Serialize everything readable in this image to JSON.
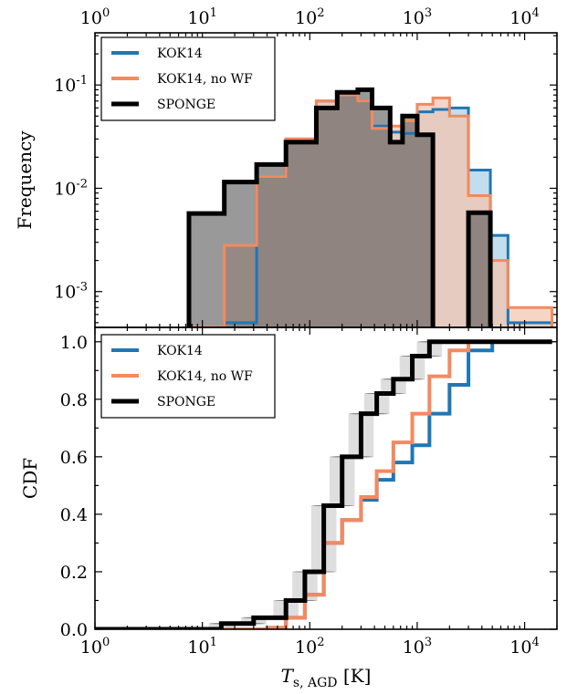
{
  "colors": {
    "kok14": "#1f77b4",
    "kok14_nowf": "#f4895f",
    "sponge": "#000000"
  },
  "chart_data": [
    {
      "type": "area",
      "panel": "top",
      "xlabel": "",
      "ylabel": "Frequency",
      "xscale": "log",
      "yscale": "log",
      "xlim": [
        1,
        20000
      ],
      "ylim": [
        0.00045,
        0.32
      ],
      "top_axis_ticks": [
        "10^0",
        "10^1",
        "10^2",
        "10^3",
        "10^4"
      ],
      "yticks": [
        "10^-3",
        "10^-2",
        "10^-1"
      ],
      "legend": [
        "KOK14",
        "KOK14, no WF",
        "SPONGE"
      ],
      "legend_position": "upper left",
      "bin_edges": [
        7.5,
        16,
        32,
        60,
        115,
        180,
        280,
        380,
        560,
        730,
        1000,
        1400,
        2000,
        3000,
        4800,
        7000,
        18000
      ],
      "series": [
        {
          "name": "KOK14",
          "values": [
            0.00045,
            0.0005,
            0.013,
            0.03,
            0.07,
            0.08,
            0.07,
            0.04,
            0.035,
            0.034,
            0.055,
            0.058,
            0.06,
            0.015,
            0.0035,
            0.0005
          ]
        },
        {
          "name": "KOK14, no WF",
          "values": [
            0.00045,
            0.0028,
            0.013,
            0.03,
            0.07,
            0.08,
            0.07,
            0.038,
            0.04,
            0.045,
            0.065,
            0.075,
            0.05,
            0.0085,
            0.002,
            0.0007
          ]
        },
        {
          "name": "SPONGE",
          "values": [
            0.0057,
            0.0115,
            0.017,
            0.028,
            0.06,
            0.085,
            0.09,
            0.06,
            0.028,
            0.05,
            0.033,
            0.00035,
            0.00035,
            0.0058,
            0.00035,
            0.00035
          ]
        }
      ]
    },
    {
      "type": "line",
      "panel": "bottom",
      "xlabel": "T_{s, AGD} [K]",
      "ylabel": "CDF",
      "xscale": "log",
      "xlim": [
        1,
        20000
      ],
      "ylim": [
        0.0,
        1.05
      ],
      "xticks": [
        "10^0",
        "10^1",
        "10^2",
        "10^3",
        "10^4"
      ],
      "yticks": [
        "0.0",
        "0.2",
        "0.4",
        "0.6",
        "0.8",
        "1.0"
      ],
      "legend": [
        "KOK14",
        "KOK14, no WF",
        "SPONGE"
      ],
      "legend_position": "upper left",
      "series": [
        {
          "name": "KOK14",
          "x": [
            1,
            15,
            40,
            60,
            90,
            135,
            200,
            300,
            420,
            600,
            900,
            1300,
            2000,
            3000,
            5000,
            18000
          ],
          "y": [
            0,
            0,
            0.005,
            0.04,
            0.12,
            0.3,
            0.38,
            0.45,
            0.52,
            0.58,
            0.64,
            0.75,
            0.85,
            0.97,
            1.0,
            1.0
          ]
        },
        {
          "name": "KOK14, no WF",
          "x": [
            1,
            15,
            40,
            60,
            90,
            135,
            200,
            300,
            420,
            600,
            900,
            1300,
            2000,
            3000,
            5000,
            18000
          ],
          "y": [
            0,
            0,
            0.005,
            0.04,
            0.12,
            0.3,
            0.38,
            0.46,
            0.55,
            0.65,
            0.75,
            0.88,
            0.97,
            1.0,
            1.0,
            1.0
          ]
        },
        {
          "name": "SPONGE",
          "x": [
            1,
            8,
            15,
            30,
            60,
            90,
            135,
            200,
            300,
            420,
            600,
            900,
            1300,
            5000,
            18000
          ],
          "y": [
            0,
            0,
            0.02,
            0.04,
            0.1,
            0.2,
            0.43,
            0.6,
            0.75,
            0.82,
            0.87,
            0.95,
            1.0,
            1.0,
            1.0
          ]
        }
      ]
    }
  ]
}
